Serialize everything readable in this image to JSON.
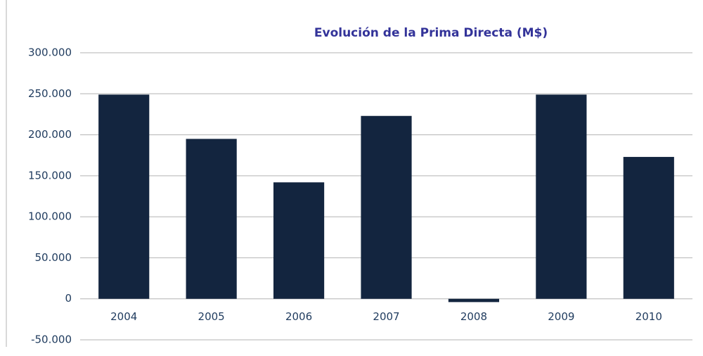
{
  "chart_data": {
    "type": "bar",
    "title": "Evolución de la Prima Directa (M$)",
    "categories": [
      "2004",
      "2005",
      "2006",
      "2007",
      "2008",
      "2009",
      "2010"
    ],
    "values": [
      249000,
      195000,
      142000,
      223000,
      -4000,
      249000,
      173000
    ],
    "color": "#13253f",
    "ylim": [
      -50000,
      300000
    ],
    "yticks": [
      {
        "value": -50000,
        "label": "-50.000"
      },
      0,
      {
        "value": 50000,
        "label": "50.000"
      },
      {
        "value": 100000,
        "label": "100.000"
      },
      {
        "value": 150000,
        "label": "150.000"
      },
      {
        "value": 200000,
        "label": "200.000"
      },
      {
        "value": 250000,
        "label": "250.000"
      },
      {
        "value": 300000,
        "label": "300.000"
      }
    ],
    "grid": true
  }
}
